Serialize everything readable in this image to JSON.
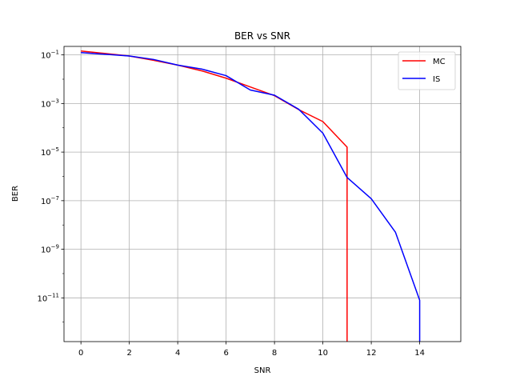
{
  "chart_data": {
    "type": "line",
    "title": "BER vs SNR",
    "xlabel": "SNR",
    "ylabel": "BER",
    "xlim": [
      -0.7,
      15.7
    ],
    "ylim_log10": [
      -12.8,
      -0.65
    ],
    "yscale": "log",
    "grid": true,
    "legend_position": "top-right",
    "x_ticks": [
      0,
      2,
      4,
      6,
      8,
      10,
      12,
      14
    ],
    "y_tick_exponents": [
      -11,
      -9,
      -7,
      -5,
      -3,
      -1
    ],
    "series": [
      {
        "name": "MC",
        "color": "#ff0000",
        "x": [
          0,
          2,
          3,
          4,
          5,
          6,
          7,
          8,
          9,
          10,
          11,
          11
        ],
        "y": [
          0.145,
          0.09,
          0.06,
          0.038,
          0.022,
          0.011,
          0.0048,
          0.0021,
          0.00056,
          0.00018,
          1.6e-05,
          1e-13
        ]
      },
      {
        "name": "IS",
        "color": "#0000ff",
        "x": [
          0,
          2,
          3,
          4,
          5,
          6,
          7,
          8,
          9,
          10,
          11,
          12,
          13,
          14,
          14
        ],
        "y": [
          0.125,
          0.09,
          0.065,
          0.038,
          0.026,
          0.014,
          0.0036,
          0.0022,
          0.00058,
          6e-05,
          9e-07,
          1.2e-07,
          5e-09,
          8e-12,
          1e-13
        ]
      }
    ]
  }
}
